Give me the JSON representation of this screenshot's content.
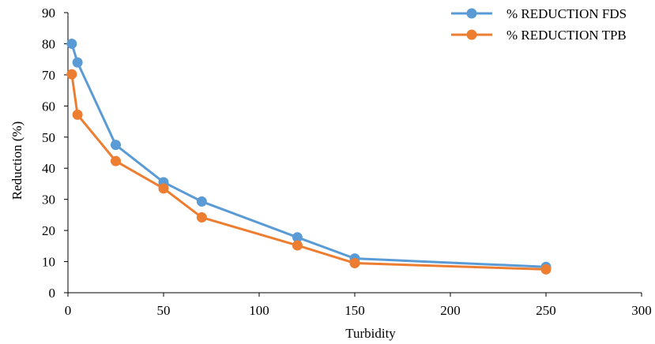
{
  "chart_data": {
    "type": "line",
    "title": "",
    "xlabel": "Turbidity",
    "ylabel": "Reduction (%)",
    "xlim": [
      0,
      300
    ],
    "ylim": [
      0,
      90
    ],
    "x_ticks": [
      0,
      50,
      100,
      150,
      200,
      250,
      300
    ],
    "y_ticks": [
      0,
      10,
      20,
      30,
      40,
      50,
      60,
      70,
      80,
      90
    ],
    "grid": false,
    "legend_position": "top-right",
    "series": [
      {
        "name": "% REDUCTION FDS",
        "color": "#5B9BD5",
        "marker": "circle",
        "x": [
          2,
          5,
          25,
          50,
          70,
          120,
          150,
          250
        ],
        "values": [
          80,
          74,
          47.5,
          35.5,
          29.3,
          17.8,
          11,
          8.3
        ]
      },
      {
        "name": "% REDUCTION TPB",
        "color": "#ED7D31",
        "marker": "circle",
        "x": [
          2,
          5,
          25,
          50,
          70,
          120,
          150,
          250
        ],
        "values": [
          70.2,
          57.2,
          42.3,
          33.5,
          24.2,
          15.2,
          9.5,
          7.5
        ]
      }
    ]
  }
}
